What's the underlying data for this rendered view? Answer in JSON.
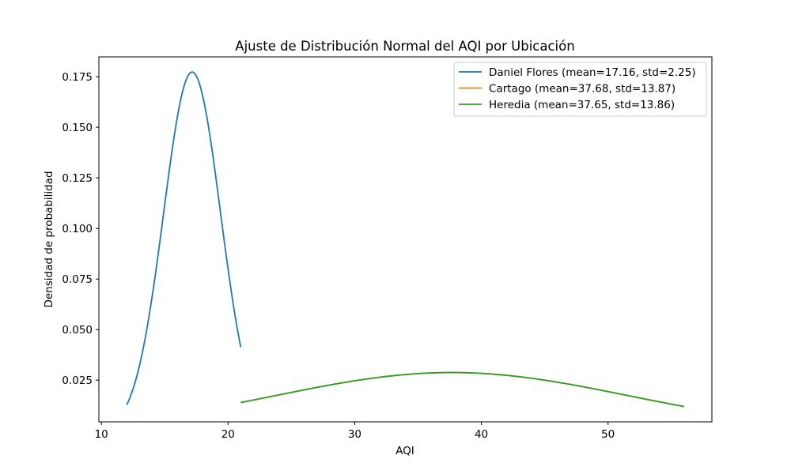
{
  "chart_data": {
    "type": "line",
    "title": "Ajuste de Distribución Normal del AQI por Ubicación",
    "xlabel": "AQI",
    "ylabel": "Densidad de probabilidad",
    "xlim": [
      9.8,
      58.2
    ],
    "ylim": [
      0.0044,
      0.1848
    ],
    "xticks": [
      10,
      20,
      30,
      40,
      50
    ],
    "xtick_labels": [
      "10",
      "20",
      "30",
      "40",
      "50"
    ],
    "yticks": [
      0.025,
      0.05,
      0.075,
      0.1,
      0.125,
      0.15,
      0.175
    ],
    "ytick_labels": [
      "0.025",
      "0.050",
      "0.075",
      "0.100",
      "0.125",
      "0.150",
      "0.175"
    ],
    "grid": false,
    "legend_position": "top-right",
    "series": [
      {
        "name": "Daniel Flores (mean=17.16, std=2.25)",
        "color": "#1f77b4",
        "mean": 17.16,
        "std": 2.25,
        "x_range": [
          12,
          21
        ]
      },
      {
        "name": "Cartago (mean=37.68, std=13.87)",
        "color": "#ff7f0e",
        "mean": 37.68,
        "std": 13.87,
        "x_range": [
          21,
          56
        ]
      },
      {
        "name": "Heredia (mean=37.65, std=13.86)",
        "color": "#2ca02c",
        "mean": 37.65,
        "std": 13.86,
        "x_range": [
          21,
          56
        ]
      }
    ]
  }
}
